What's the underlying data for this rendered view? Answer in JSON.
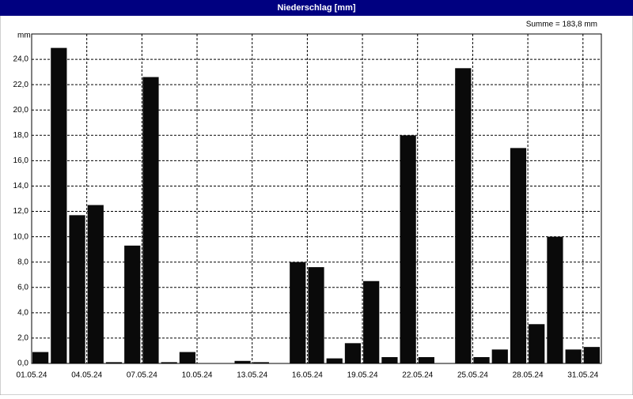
{
  "chart_data": {
    "type": "bar",
    "title": "Niederschlag [mm]",
    "y_unit": "mm",
    "annotation": "Summe = 183,8 mm",
    "categories": [
      "01.05.24",
      null,
      null,
      "04.05.24",
      null,
      null,
      "07.05.24",
      null,
      null,
      "10.05.24",
      null,
      null,
      "13.05.24",
      null,
      null,
      "16.05.24",
      null,
      null,
      "19.05.24",
      null,
      null,
      "22.05.24",
      null,
      null,
      "25.05.24",
      null,
      null,
      "28.05.24",
      null,
      null,
      "31.05.24"
    ],
    "values": [
      0.9,
      24.9,
      11.7,
      12.5,
      0.1,
      9.3,
      22.6,
      0.1,
      0.9,
      0,
      0,
      0.2,
      0.1,
      0,
      8.0,
      7.6,
      0.4,
      1.6,
      6.5,
      0.5,
      18.0,
      0.5,
      0,
      23.3,
      0.5,
      1.1,
      17.0,
      3.1,
      10.0,
      1.1,
      1.3
    ],
    "color": "#0a0a0a",
    "ylim": [
      0,
      26
    ],
    "yticks": [
      {
        "value": 0,
        "label": "0,0"
      },
      {
        "value": 2,
        "label": "2,0"
      },
      {
        "value": 4,
        "label": "4,0"
      },
      {
        "value": 6,
        "label": "6,0"
      },
      {
        "value": 8,
        "label": "8,0"
      },
      {
        "value": 10,
        "label": "10,0"
      },
      {
        "value": 12,
        "label": "12,0"
      },
      {
        "value": 14,
        "label": "14,0"
      },
      {
        "value": 16,
        "label": "16,0"
      },
      {
        "value": 18,
        "label": "18,0"
      },
      {
        "value": 20,
        "label": "20,0"
      },
      {
        "value": 22,
        "label": "22,0"
      },
      {
        "value": 24,
        "label": "24,0"
      }
    ],
    "grid": true
  }
}
